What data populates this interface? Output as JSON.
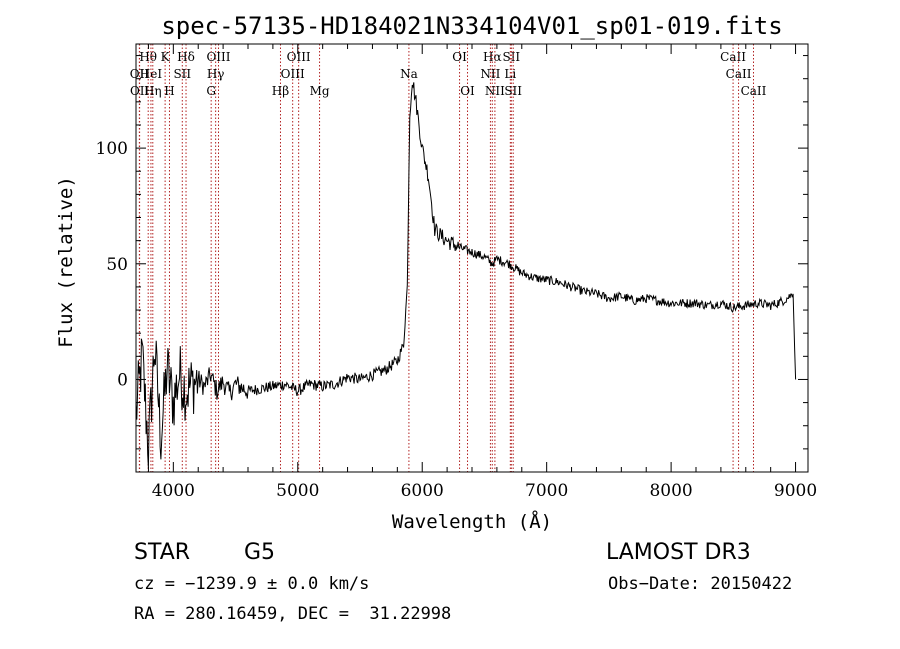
{
  "chart_data": {
    "type": "line",
    "title": "spec-57135-HD184021N334104V01_sp01-019.fits",
    "xlabel": "Wavelength (Å)",
    "ylabel": "Flux (relative)",
    "xlim": [
      3700,
      9100
    ],
    "ylim": [
      -40,
      145
    ],
    "xticks": [
      4000,
      5000,
      6000,
      7000,
      8000,
      9000
    ],
    "yticks": [
      0,
      50,
      100
    ],
    "grid": false,
    "series": [
      {
        "name": "flux",
        "x": [
          3700,
          3750,
          3800,
          3850,
          3900,
          3950,
          4000,
          4050,
          4100,
          4150,
          4200,
          4250,
          4300,
          4350,
          4400,
          4450,
          4500,
          4600,
          4700,
          4800,
          4900,
          5000,
          5100,
          5200,
          5300,
          5400,
          5500,
          5600,
          5700,
          5800,
          5850,
          5880,
          5900,
          5920,
          5950,
          6000,
          6050,
          6100,
          6150,
          6200,
          6300,
          6400,
          6500,
          6563,
          6600,
          6700,
          6800,
          6900,
          7000,
          7100,
          7200,
          7300,
          7400,
          7500,
          7600,
          7700,
          7800,
          7900,
          8000,
          8100,
          8200,
          8300,
          8400,
          8500,
          8600,
          8700,
          8800,
          8900,
          8980,
          9000
        ],
        "y": [
          -15,
          10,
          -30,
          15,
          -25,
          5,
          -10,
          3,
          -5,
          -2,
          0,
          -3,
          2,
          -5,
          -1,
          -6,
          -2,
          -5,
          -4,
          -3,
          -2,
          -5,
          -2,
          -3,
          -2,
          1,
          0,
          2,
          4,
          8,
          15,
          40,
          115,
          130,
          120,
          100,
          88,
          65,
          62,
          60,
          57,
          55,
          53,
          50,
          52,
          50,
          46,
          44,
          43,
          42,
          40,
          38,
          37,
          35,
          36,
          34,
          35,
          34,
          33,
          33,
          33,
          32,
          33,
          31,
          32,
          33,
          32,
          34,
          37,
          0
        ]
      }
    ],
    "lines": [
      {
        "label": "Hθ",
        "x": 3798,
        "row": 1
      },
      {
        "label": "OII",
        "x": 3727,
        "row": 2
      },
      {
        "label": "HeI",
        "x": 3820,
        "row": 2
      },
      {
        "label": "OII",
        "x": 3729,
        "row": 3
      },
      {
        "label": "Hη",
        "x": 3835,
        "row": 3
      },
      {
        "label": "K",
        "x": 3934,
        "row": 1
      },
      {
        "label": "SII",
        "x": 4072,
        "row": 2
      },
      {
        "label": "H",
        "x": 3969,
        "row": 3
      },
      {
        "label": "Hδ",
        "x": 4102,
        "row": 1
      },
      {
        "label": "OIII",
        "x": 4363,
        "row": 1
      },
      {
        "label": "Hγ",
        "x": 4340,
        "row": 2
      },
      {
        "label": "G",
        "x": 4304,
        "row": 3
      },
      {
        "label": "OIII",
        "x": 5007,
        "row": 1
      },
      {
        "label": "OIII",
        "x": 4959,
        "row": 2
      },
      {
        "label": "Hβ",
        "x": 4861,
        "row": 3
      },
      {
        "label": "Mg",
        "x": 5175,
        "row": 3
      },
      {
        "label": "Na",
        "x": 5893,
        "row": 2
      },
      {
        "label": "OI",
        "x": 6300,
        "row": 1
      },
      {
        "label": "OI",
        "x": 6364,
        "row": 3
      },
      {
        "label": "Hα",
        "x": 6563,
        "row": 1
      },
      {
        "label": "SII",
        "x": 6716,
        "row": 1
      },
      {
        "label": "NII",
        "x": 6548,
        "row": 2
      },
      {
        "label": "Li",
        "x": 6708,
        "row": 2
      },
      {
        "label": "NII",
        "x": 6584,
        "row": 3
      },
      {
        "label": "SII",
        "x": 6731,
        "row": 3
      },
      {
        "label": "CaII",
        "x": 8498,
        "row": 1
      },
      {
        "label": "CaII",
        "x": 8542,
        "row": 2
      },
      {
        "label": "CaII",
        "x": 8662,
        "row": 3
      }
    ]
  },
  "info": {
    "object_class": "STAR",
    "subclass": "G5",
    "survey": "LAMOST DR3",
    "cz": "cz = −1239.9 ± 0.0 km/s",
    "obs_date": "Obs−Date: 20150422",
    "coords": "RA = 280.16459, DEC =  31.22998"
  }
}
